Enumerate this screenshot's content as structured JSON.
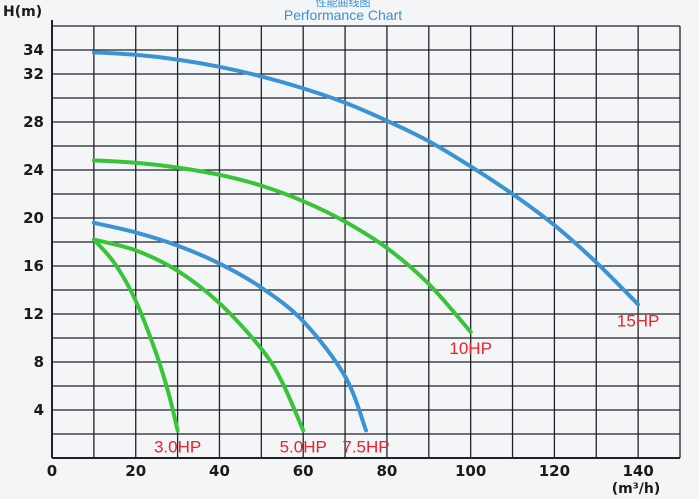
{
  "chart_data": {
    "type": "line",
    "title_cn": "性能曲线图",
    "title": "Performance Chart",
    "ylabel": "H(m)",
    "xlabel": "(m³/h)",
    "xlim": [
      0,
      150
    ],
    "ylim": [
      0,
      36
    ],
    "x_ticks": [
      0,
      20,
      40,
      60,
      80,
      100,
      120,
      140
    ],
    "y_ticks": [
      4,
      8,
      12,
      16,
      20,
      24,
      28,
      32,
      34
    ],
    "grid": true,
    "colors": {
      "blue": "#3b93d3",
      "green": "#37c43b",
      "label": "#e8232d",
      "grid": "#1f2328",
      "title": "#3a8fd0"
    },
    "series": [
      {
        "name": "3.0HP",
        "color": "green",
        "x": [
          10,
          15,
          20,
          25,
          28,
          30
        ],
        "y": [
          18.2,
          16.2,
          13.1,
          8.6,
          5.2,
          2.3
        ]
      },
      {
        "name": "5.0HP",
        "color": "green",
        "x": [
          10,
          20,
          30,
          40,
          50,
          55,
          60
        ],
        "y": [
          18.2,
          17.3,
          15.6,
          12.9,
          9.1,
          6.3,
          2.3
        ]
      },
      {
        "name": "7.5HP",
        "color": "blue",
        "x": [
          10,
          20,
          30,
          40,
          50,
          60,
          70,
          75
        ],
        "y": [
          19.6,
          18.8,
          17.7,
          16.2,
          14.2,
          11.4,
          6.8,
          2.3
        ]
      },
      {
        "name": "10HP",
        "color": "green",
        "x": [
          10,
          20,
          30,
          40,
          50,
          60,
          70,
          80,
          90,
          100
        ],
        "y": [
          24.8,
          24.6,
          24.2,
          23.6,
          22.7,
          21.4,
          19.7,
          17.5,
          14.5,
          10.5
        ]
      },
      {
        "name": "15HP",
        "color": "blue",
        "x": [
          10,
          20,
          30,
          40,
          50,
          60,
          70,
          80,
          90,
          100,
          110,
          120,
          130,
          140
        ],
        "y": [
          33.8,
          33.6,
          33.2,
          32.6,
          31.8,
          30.8,
          29.6,
          28.1,
          26.4,
          24.3,
          22.0,
          19.4,
          16.3,
          12.8
        ]
      }
    ]
  }
}
